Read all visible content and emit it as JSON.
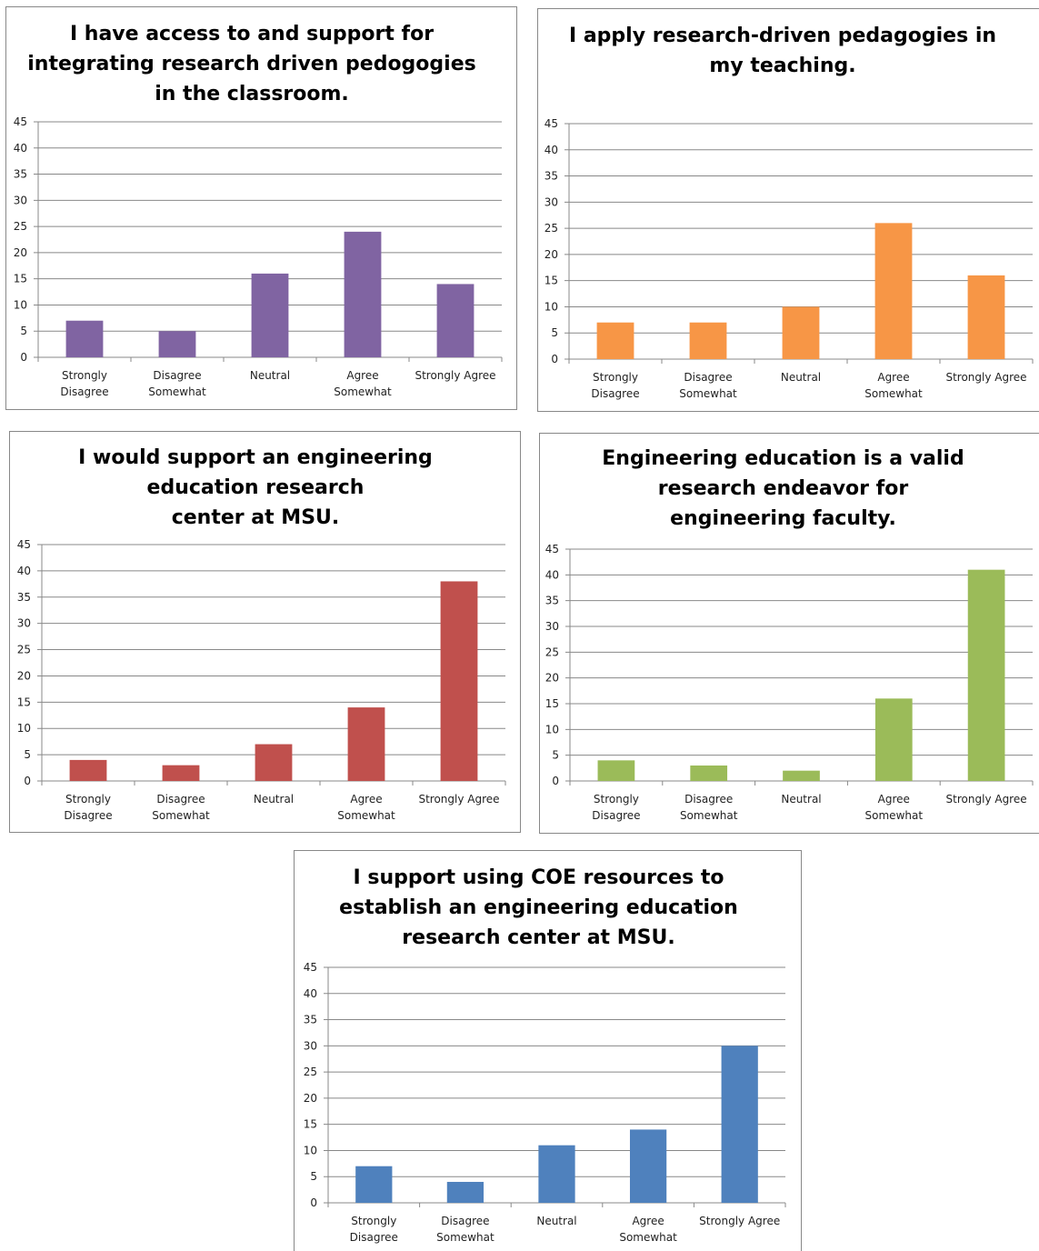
{
  "chart_data": [
    {
      "type": "bar",
      "title": "I have access to and support for\nintegrating research driven pedogogies\nin the classroom.",
      "categories": [
        "Strongly\nDisagree",
        "Disagree\nSomewhat",
        "Neutral",
        "Agree\nSomewhat",
        "Strongly Agree"
      ],
      "values": [
        7,
        5,
        16,
        24,
        14
      ],
      "color": "#8064a2",
      "ylim": [
        0,
        45
      ],
      "yticks": [
        0,
        5,
        10,
        15,
        20,
        25,
        30,
        35,
        40,
        45
      ],
      "grid": true
    },
    {
      "type": "bar",
      "title": "I apply research-driven pedagogies in\nmy teaching.",
      "categories": [
        "Strongly\nDisagree",
        "Disagree\nSomewhat",
        "Neutral",
        "Agree\nSomewhat",
        "Strongly Agree"
      ],
      "values": [
        7,
        7,
        10,
        26,
        16
      ],
      "color": "#f79646",
      "ylim": [
        0,
        45
      ],
      "yticks": [
        0,
        5,
        10,
        15,
        20,
        25,
        30,
        35,
        40,
        45
      ],
      "grid": true
    },
    {
      "type": "bar",
      "title": "I would support an engineering\neducation research\ncenter at MSU.",
      "categories": [
        "Strongly\nDisagree",
        "Disagree\nSomewhat",
        "Neutral",
        "Agree\nSomewhat",
        "Strongly Agree"
      ],
      "values": [
        4,
        3,
        7,
        14,
        38
      ],
      "color": "#c0504d",
      "ylim": [
        0,
        45
      ],
      "yticks": [
        0,
        5,
        10,
        15,
        20,
        25,
        30,
        35,
        40,
        45
      ],
      "grid": true
    },
    {
      "type": "bar",
      "title": "Engineering education is a valid\nresearch endeavor for\nengineering faculty.",
      "categories": [
        "Strongly\nDisagree",
        "Disagree\nSomewhat",
        "Neutral",
        "Agree\nSomewhat",
        "Strongly Agree"
      ],
      "values": [
        4,
        3,
        2,
        16,
        41
      ],
      "color": "#9bbb59",
      "ylim": [
        0,
        45
      ],
      "yticks": [
        0,
        5,
        10,
        15,
        20,
        25,
        30,
        35,
        40,
        45
      ],
      "grid": true
    },
    {
      "type": "bar",
      "title": "I support using COE resources to\nestablish an engineering education\nresearch center at MSU.",
      "categories": [
        "Strongly\nDisagree",
        "Disagree\nSomewhat",
        "Neutral",
        "Agree\nSomewhat",
        "Strongly Agree"
      ],
      "values": [
        7,
        4,
        11,
        14,
        30
      ],
      "color": "#4f81bd",
      "ylim": [
        0,
        45
      ],
      "yticks": [
        0,
        5,
        10,
        15,
        20,
        25,
        30,
        35,
        40,
        45
      ],
      "grid": true
    }
  ]
}
